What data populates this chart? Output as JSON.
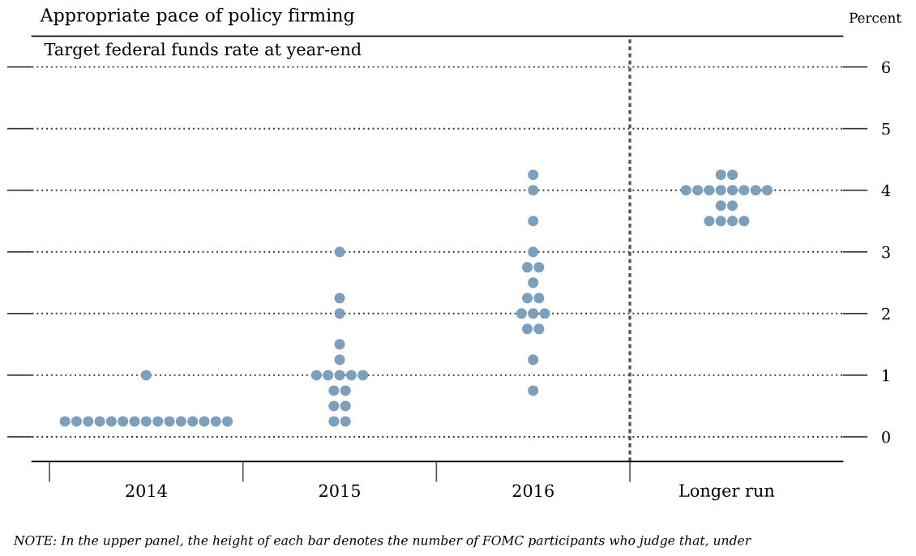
{
  "chart_data": {
    "type": "scatter",
    "title": "Appropriate pace of policy firming",
    "subtitle": "Target federal funds rate at year-end",
    "ylabel": "Percent",
    "categories": [
      "2014",
      "2015",
      "2016",
      "Longer run"
    ],
    "series": [
      {
        "color": "#7c9fbb",
        "values": [
          0.25,
          0.25,
          0.75,
          3.5
        ]
      },
      {
        "color": "#7c9fbb",
        "values": [
          0.25,
          0.25,
          1.25,
          3.5
        ]
      },
      {
        "color": "#7c9fbb",
        "values": [
          0.25,
          0.5,
          1.75,
          3.5
        ]
      },
      {
        "color": "#7c9fbb",
        "values": [
          0.25,
          0.5,
          1.75,
          3.5
        ]
      },
      {
        "color": "#7c9fbb",
        "values": [
          0.25,
          0.75,
          2.0,
          3.75
        ]
      },
      {
        "color": "#7c9fbb",
        "values": [
          0.25,
          0.75,
          2.0,
          3.75
        ]
      },
      {
        "color": "#7c9fbb",
        "values": [
          0.25,
          1.0,
          2.0,
          4.0
        ]
      },
      {
        "color": "#7c9fbb",
        "values": [
          0.25,
          1.0,
          2.25,
          4.0
        ]
      },
      {
        "color": "#7c9fbb",
        "values": [
          0.25,
          1.0,
          2.25,
          4.0
        ]
      },
      {
        "color": "#7c9fbb",
        "values": [
          0.25,
          1.0,
          2.5,
          4.0
        ]
      },
      {
        "color": "#7c9fbb",
        "values": [
          0.25,
          1.0,
          2.75,
          4.0
        ]
      },
      {
        "color": "#7c9fbb",
        "values": [
          0.25,
          1.25,
          2.75,
          4.0
        ]
      },
      {
        "color": "#7c9fbb",
        "values": [
          0.25,
          1.5,
          3.0,
          4.0
        ]
      },
      {
        "color": "#7c9fbb",
        "values": [
          0.25,
          2.0,
          3.5,
          4.0
        ]
      },
      {
        "color": "#7c9fbb",
        "values": [
          0.25,
          2.25,
          4.0,
          4.25
        ]
      },
      {
        "color": "#7c9fbb",
        "values": [
          1.0,
          3.0,
          4.25,
          4.25
        ]
      }
    ],
    "ylim": [
      -0.4,
      6.5
    ],
    "yticks": [
      0,
      1,
      2,
      3,
      4,
      5,
      6
    ],
    "grid": "y",
    "marker": "circle",
    "legend": false,
    "annotations": [
      "NOTE: In the upper panel, the height of each bar denotes the number of FOMC participants who judge that, under"
    ]
  }
}
